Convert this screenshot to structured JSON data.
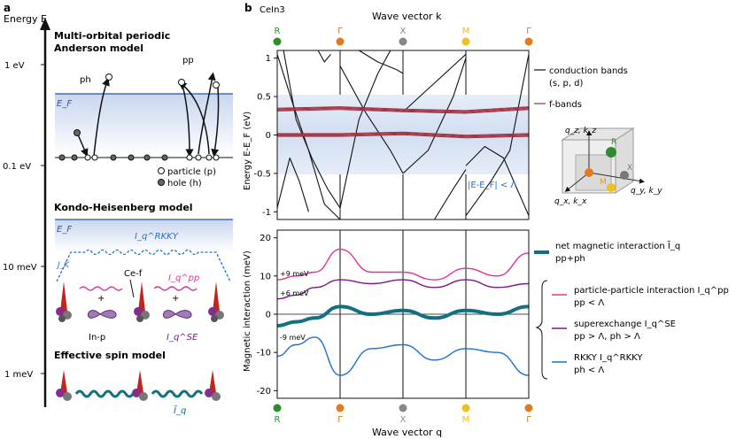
{
  "panel_a": {
    "label": "a",
    "axis_title": "Energy E",
    "ticks": [
      "1 eV",
      "0.1 eV",
      "10 meV",
      "1 meV"
    ],
    "model1_title": "Multi-orbital periodic",
    "model1_title2": "Anderson model",
    "ph_label": "ph",
    "pp_label": "pp",
    "ef_label": "E_F",
    "particle_label": "particle (p)",
    "hole_label": "hole (h)",
    "model2_title": "Kondo-Heisenberg model",
    "ef2_label": "E_F",
    "rkky_label": "I_q^RKKY",
    "jk_label": "J_K",
    "cef_label": "Ce-f",
    "ipp_label": "I_q^pp",
    "inp_label": "In-p",
    "ise_label": "I_q^SE",
    "model3_title": "Effective spin model",
    "itilde_label": "Ĩ_q"
  },
  "panel_b": {
    "label": "b",
    "compound": "CeIn3",
    "top_axis_title": "Wave vector k",
    "bottom_axis_title": "Wave vector q",
    "kpoints": [
      "R",
      "Γ",
      "X",
      "M",
      "Γ"
    ],
    "kpoint_colors": [
      "#2e8b2e",
      "#e07b20",
      "#888888",
      "#f0c020",
      "#e07b20"
    ],
    "band_ylabel": "Energy E-E_F (eV)",
    "mag_ylabel": "Magnetic interaction (meV)",
    "band_ticks": [
      "1",
      "0.5",
      "0",
      "-0.5",
      "-1"
    ],
    "mag_ticks": [
      "20",
      "10",
      "0",
      "-10",
      "-20"
    ],
    "window_label": "|E-E_F| < Λ",
    "legend_conduction": "conduction bands",
    "legend_conduction2": "(s, p, d)",
    "legend_fbands": "f-bands",
    "legend_net": "net magnetic interaction Ĩ_q",
    "legend_net2": "pp+ph",
    "legend_pp": "particle-particle interaction I_q^pp",
    "legend_pp2": "pp < Λ",
    "legend_se": "superexchange I_q^SE",
    "legend_se2": "pp > Λ, ph > Λ",
    "legend_rkky": "RKKY I_q^RKKY",
    "legend_rkky2": "ph < Λ",
    "ann_9": "+9 meV",
    "ann_6": "+6 meV",
    "ann_m9": "-9 meV",
    "bz_qz": "q_z, k_z",
    "bz_qx": "q_x, k_x",
    "bz_qy": "q_y, k_y",
    "bz_R": "R",
    "bz_X": "X",
    "bz_M": "M",
    "colors": {
      "pp": "#e0349a",
      "se": "#7a1a8c",
      "rkky": "#1f6fd6",
      "net": "#127080",
      "fband": "#a03040",
      "window": "#dbe6f6"
    }
  },
  "chart_data": [
    {
      "type": "line",
      "title": "CeIn3",
      "xlabel": "Wave vector k",
      "ylabel": "Energy E-E_F (eV)",
      "categories": [
        "R",
        "Γ",
        "X",
        "M",
        "Γ"
      ],
      "ylim": [
        -1.1,
        1.1
      ],
      "series": [
        {
          "name": "conduction bands (s, p, d)",
          "x": [
            0,
            1,
            2,
            3,
            4
          ],
          "values": [
            1.0,
            -0.5,
            0.3,
            -0.6,
            0.8
          ]
        },
        {
          "name": "f-bands",
          "x": [
            0,
            1,
            2,
            3,
            4
          ],
          "values": [
            0.33,
            0.35,
            0.32,
            0.3,
            0.35
          ]
        },
        {
          "name": "f-bands",
          "x": [
            0,
            1,
            2,
            3,
            4
          ],
          "values": [
            0.0,
            0.0,
            0.02,
            -0.02,
            0.0
          ]
        }
      ]
    },
    {
      "type": "line",
      "xlabel": "Wave vector q",
      "ylabel": "Magnetic interaction (meV)",
      "categories": [
        "R",
        "Γ",
        "X",
        "M",
        "Γ"
      ],
      "ylim": [
        -22,
        22
      ],
      "series": [
        {
          "name": "particle-particle interaction I_q^pp",
          "x": [
            0,
            0.3,
            0.6,
            1,
            1.5,
            2,
            2.5,
            3,
            3.5,
            4
          ],
          "values": [
            9,
            10,
            11,
            17,
            11,
            11,
            9,
            12,
            10,
            16
          ]
        },
        {
          "name": "superexchange I_q^SE",
          "x": [
            0,
            0.3,
            0.6,
            1,
            1.5,
            2,
            2.5,
            3,
            3.5,
            4
          ],
          "values": [
            4,
            5,
            7,
            9,
            8,
            9,
            7,
            9,
            7,
            8
          ]
        },
        {
          "name": "net magnetic interaction Ĩ_q",
          "x": [
            0,
            0.3,
            0.6,
            1,
            1.5,
            2,
            2.5,
            3,
            3.5,
            4
          ],
          "values": [
            -3,
            -2,
            -1,
            2,
            0,
            1,
            -1,
            1,
            0,
            2
          ]
        },
        {
          "name": "RKKY I_q^RKKY",
          "x": [
            0,
            0.3,
            0.6,
            1,
            1.5,
            2,
            2.5,
            3,
            3.5,
            4
          ],
          "values": [
            -11,
            -8,
            -6,
            -16,
            -9,
            -8,
            -12,
            -9,
            -10,
            -16
          ]
        }
      ]
    }
  ]
}
